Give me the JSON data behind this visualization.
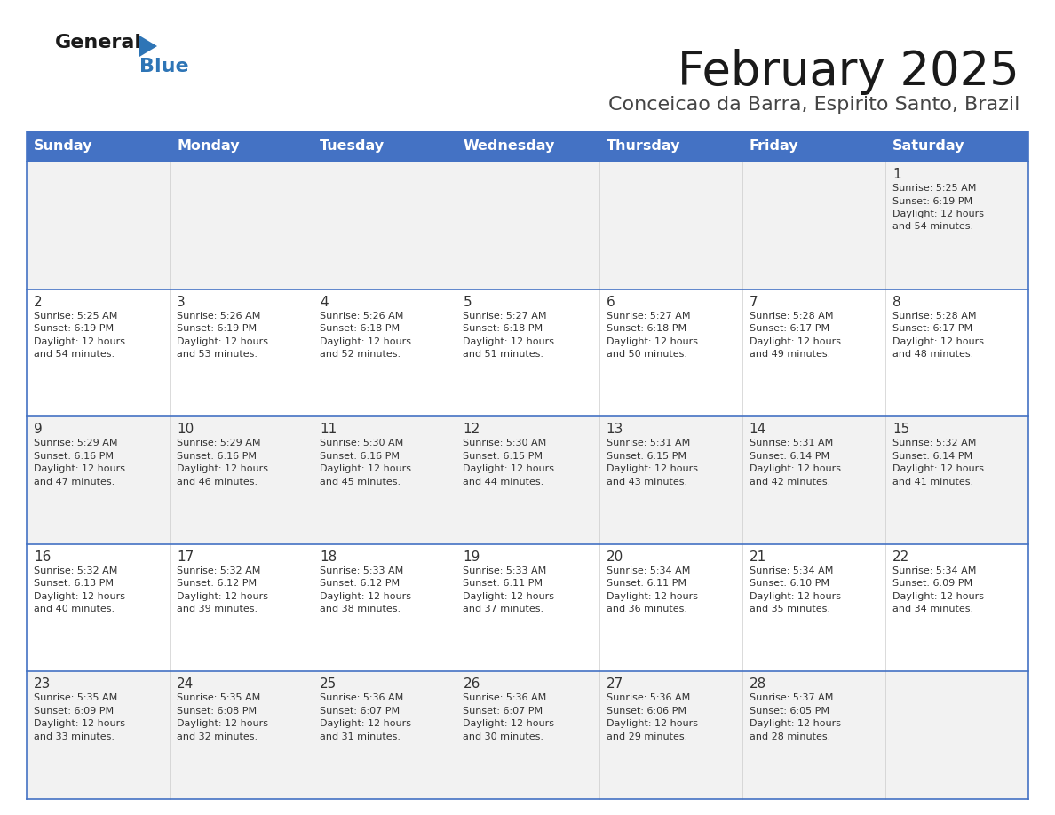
{
  "title": "February 2025",
  "subtitle": "Conceicao da Barra, Espirito Santo, Brazil",
  "days_of_week": [
    "Sunday",
    "Monday",
    "Tuesday",
    "Wednesday",
    "Thursday",
    "Friday",
    "Saturday"
  ],
  "header_bg": "#4472C4",
  "header_text": "#FFFFFF",
  "row_bg_odd": "#F2F2F2",
  "row_bg_even": "#FFFFFF",
  "cell_border_color": "#4472C4",
  "day_num_color": "#333333",
  "info_text_color": "#333333",
  "title_color": "#1a1a1a",
  "subtitle_color": "#444444",
  "logo_general_color": "#1a1a1a",
  "logo_blue_color": "#2E75B6",
  "figsize": [
    11.88,
    9.18
  ],
  "dpi": 100,
  "calendar": [
    [
      null,
      null,
      null,
      null,
      null,
      null,
      {
        "day": "1",
        "sunrise": "5:25 AM",
        "sunset": "6:19 PM",
        "daylight_hrs": "12 hours",
        "daylight_min": "and 54 minutes."
      }
    ],
    [
      {
        "day": "2",
        "sunrise": "5:25 AM",
        "sunset": "6:19 PM",
        "daylight_hrs": "12 hours",
        "daylight_min": "and 54 minutes."
      },
      {
        "day": "3",
        "sunrise": "5:26 AM",
        "sunset": "6:19 PM",
        "daylight_hrs": "12 hours",
        "daylight_min": "and 53 minutes."
      },
      {
        "day": "4",
        "sunrise": "5:26 AM",
        "sunset": "6:18 PM",
        "daylight_hrs": "12 hours",
        "daylight_min": "and 52 minutes."
      },
      {
        "day": "5",
        "sunrise": "5:27 AM",
        "sunset": "6:18 PM",
        "daylight_hrs": "12 hours",
        "daylight_min": "and 51 minutes."
      },
      {
        "day": "6",
        "sunrise": "5:27 AM",
        "sunset": "6:18 PM",
        "daylight_hrs": "12 hours",
        "daylight_min": "and 50 minutes."
      },
      {
        "day": "7",
        "sunrise": "5:28 AM",
        "sunset": "6:17 PM",
        "daylight_hrs": "12 hours",
        "daylight_min": "and 49 minutes."
      },
      {
        "day": "8",
        "sunrise": "5:28 AM",
        "sunset": "6:17 PM",
        "daylight_hrs": "12 hours",
        "daylight_min": "and 48 minutes."
      }
    ],
    [
      {
        "day": "9",
        "sunrise": "5:29 AM",
        "sunset": "6:16 PM",
        "daylight_hrs": "12 hours",
        "daylight_min": "and 47 minutes."
      },
      {
        "day": "10",
        "sunrise": "5:29 AM",
        "sunset": "6:16 PM",
        "daylight_hrs": "12 hours",
        "daylight_min": "and 46 minutes."
      },
      {
        "day": "11",
        "sunrise": "5:30 AM",
        "sunset": "6:16 PM",
        "daylight_hrs": "12 hours",
        "daylight_min": "and 45 minutes."
      },
      {
        "day": "12",
        "sunrise": "5:30 AM",
        "sunset": "6:15 PM",
        "daylight_hrs": "12 hours",
        "daylight_min": "and 44 minutes."
      },
      {
        "day": "13",
        "sunrise": "5:31 AM",
        "sunset": "6:15 PM",
        "daylight_hrs": "12 hours",
        "daylight_min": "and 43 minutes."
      },
      {
        "day": "14",
        "sunrise": "5:31 AM",
        "sunset": "6:14 PM",
        "daylight_hrs": "12 hours",
        "daylight_min": "and 42 minutes."
      },
      {
        "day": "15",
        "sunrise": "5:32 AM",
        "sunset": "6:14 PM",
        "daylight_hrs": "12 hours",
        "daylight_min": "and 41 minutes."
      }
    ],
    [
      {
        "day": "16",
        "sunrise": "5:32 AM",
        "sunset": "6:13 PM",
        "daylight_hrs": "12 hours",
        "daylight_min": "and 40 minutes."
      },
      {
        "day": "17",
        "sunrise": "5:32 AM",
        "sunset": "6:12 PM",
        "daylight_hrs": "12 hours",
        "daylight_min": "and 39 minutes."
      },
      {
        "day": "18",
        "sunrise": "5:33 AM",
        "sunset": "6:12 PM",
        "daylight_hrs": "12 hours",
        "daylight_min": "and 38 minutes."
      },
      {
        "day": "19",
        "sunrise": "5:33 AM",
        "sunset": "6:11 PM",
        "daylight_hrs": "12 hours",
        "daylight_min": "and 37 minutes."
      },
      {
        "day": "20",
        "sunrise": "5:34 AM",
        "sunset": "6:11 PM",
        "daylight_hrs": "12 hours",
        "daylight_min": "and 36 minutes."
      },
      {
        "day": "21",
        "sunrise": "5:34 AM",
        "sunset": "6:10 PM",
        "daylight_hrs": "12 hours",
        "daylight_min": "and 35 minutes."
      },
      {
        "day": "22",
        "sunrise": "5:34 AM",
        "sunset": "6:09 PM",
        "daylight_hrs": "12 hours",
        "daylight_min": "and 34 minutes."
      }
    ],
    [
      {
        "day": "23",
        "sunrise": "5:35 AM",
        "sunset": "6:09 PM",
        "daylight_hrs": "12 hours",
        "daylight_min": "and 33 minutes."
      },
      {
        "day": "24",
        "sunrise": "5:35 AM",
        "sunset": "6:08 PM",
        "daylight_hrs": "12 hours",
        "daylight_min": "and 32 minutes."
      },
      {
        "day": "25",
        "sunrise": "5:36 AM",
        "sunset": "6:07 PM",
        "daylight_hrs": "12 hours",
        "daylight_min": "and 31 minutes."
      },
      {
        "day": "26",
        "sunrise": "5:36 AM",
        "sunset": "6:07 PM",
        "daylight_hrs": "12 hours",
        "daylight_min": "and 30 minutes."
      },
      {
        "day": "27",
        "sunrise": "5:36 AM",
        "sunset": "6:06 PM",
        "daylight_hrs": "12 hours",
        "daylight_min": "and 29 minutes."
      },
      {
        "day": "28",
        "sunrise": "5:37 AM",
        "sunset": "6:05 PM",
        "daylight_hrs": "12 hours",
        "daylight_min": "and 28 minutes."
      },
      null
    ]
  ]
}
